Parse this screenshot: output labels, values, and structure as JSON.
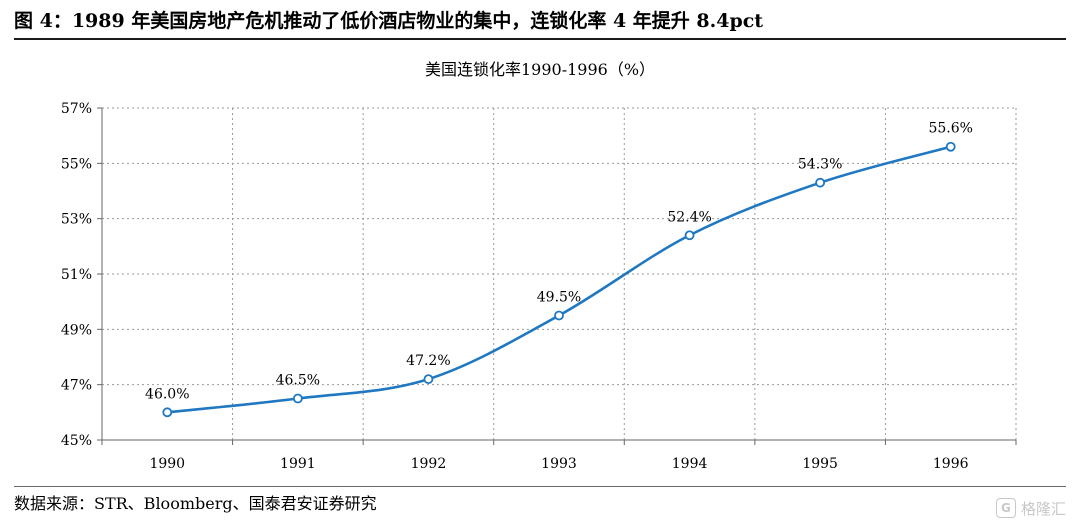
{
  "figure_title": "图 4：1989 年美国房地产危机推动了低价酒店物业的集中，连锁化率 4 年提升 8.4pct",
  "source": "数据来源：STR、Bloomberg、国泰君安证券研究",
  "watermark": {
    "text": "格隆汇",
    "logo": "G"
  },
  "colors": {
    "series": "#1f78c1",
    "grid": "#9a9a9a",
    "axis": "#666666"
  },
  "chart_data": {
    "type": "line",
    "title": "美国连锁化率1990-1996（%）",
    "xlabel": "",
    "ylabel": "",
    "categories": [
      "1990",
      "1991",
      "1992",
      "1993",
      "1994",
      "1995",
      "1996"
    ],
    "series": [
      {
        "values": [
          46.0,
          46.5,
          47.2,
          49.5,
          52.4,
          54.3,
          55.6
        ],
        "labels": [
          "46.0%",
          "46.5%",
          "47.2%",
          "49.5%",
          "52.4%",
          "54.3%",
          "55.6%"
        ]
      }
    ],
    "ylim": [
      45,
      57
    ],
    "yticks": [
      45,
      47,
      49,
      51,
      53,
      55,
      57
    ],
    "ytick_labels": [
      "45%",
      "47%",
      "49%",
      "51%",
      "53%",
      "55%",
      "57%"
    ],
    "grid": true,
    "smooth": true,
    "markers": "hollow-circle"
  }
}
